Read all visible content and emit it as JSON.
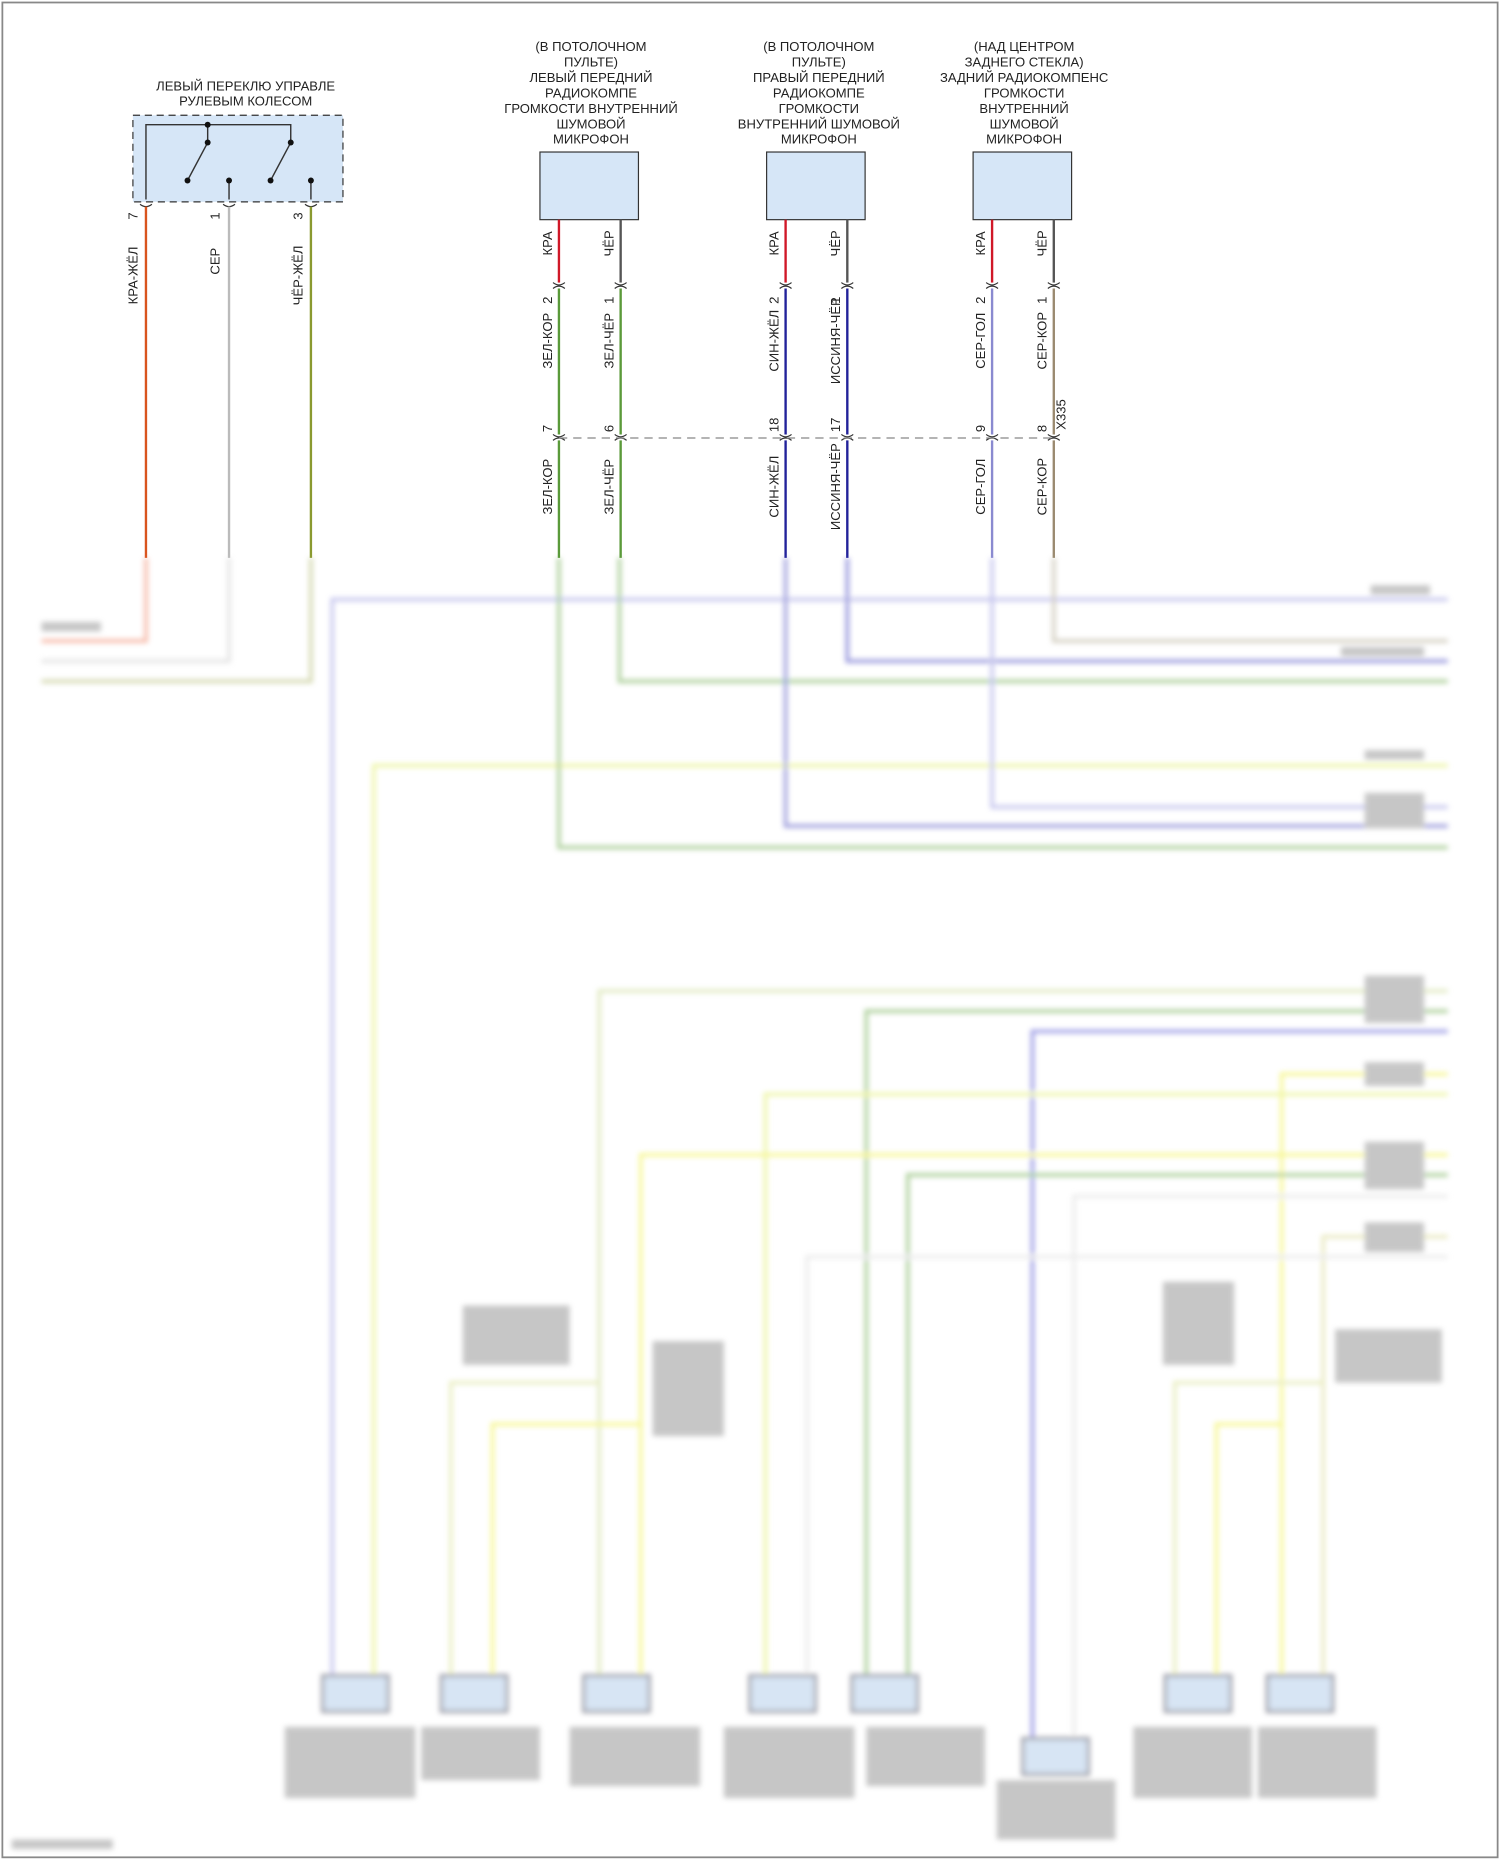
{
  "switch": {
    "title": [
      "ЛЕВЫЙ ПЕРЕКЛЮ УПРАВЛЕ",
      "РУЛЕВЫМ КОЛЕСОМ"
    ],
    "pins": [
      "7",
      "1",
      "3"
    ],
    "wires": [
      "КРА-ЖЁЛ",
      "СЕР",
      "ЧЁР-ЖЁЛ"
    ]
  },
  "mics": [
    {
      "title": [
        "(В ПОТОЛОЧНОМ",
        "ПУЛЬТЕ)",
        "ЛЕВЫЙ ПЕРЕДНИЙ",
        "РАДИОКОМПЕ",
        "ГРОМКОСТИ ВНУТРЕННИЙ",
        "ШУМОВОЙ",
        "МИКРОФОН"
      ],
      "top_wires": [
        "КРА",
        "ЧЁР"
      ],
      "pins_upper": [
        "2",
        "1"
      ],
      "mid_wires": [
        "ЗЕЛ-КОР",
        "ЗЕЛ-ЧЁР"
      ],
      "pins_lower": [
        "7",
        "6"
      ],
      "low_wires": [
        "ЗЕЛ-КОР",
        "ЗЕЛ-ЧЁР"
      ]
    },
    {
      "title": [
        "(В ПОТОЛОЧНОМ",
        "ПУЛЬТЕ)",
        "ПРАВЫЙ ПЕРЕДНИЙ",
        "РАДИОКОМПЕ",
        "ГРОМКОСТИ",
        "ВНУТРЕННИЙ ШУМОВОЙ",
        "МИКРОФОН"
      ],
      "top_wires": [
        "КРА",
        "ЧЁР"
      ],
      "pins_upper": [
        "2",
        "1"
      ],
      "mid_wires": [
        "СИН-ЖЁЛ",
        "ИССИНЯ-ЧЁР"
      ],
      "pins_lower": [
        "18",
        "17"
      ],
      "low_wires": [
        "СИН-ЖЁЛ",
        "ИССИНЯ-ЧЁР"
      ]
    },
    {
      "title": [
        "(НАД ЦЕНТРОМ",
        "ЗАДНЕГО СТЕКЛА)",
        "ЗАДНИЙ РАДИОКОМПЕНС",
        "ГРОМКОСТИ",
        "ВНУТРЕННИЙ",
        "ШУМОВОЙ",
        "МИКРОФОН"
      ],
      "top_wires": [
        "КРА",
        "ЧЁР"
      ],
      "pins_upper": [
        "2",
        "1"
      ],
      "mid_wires": [
        "СЕР-ГОЛ",
        "СЕР-КОР"
      ],
      "pins_lower": [
        "9",
        "8"
      ],
      "low_wires": [
        "СЕР-ГОЛ",
        "СЕР-КОР"
      ]
    }
  ],
  "connector_id": "X335",
  "colors": {
    "component_fill": "#d6e6f7",
    "red": "#d01828",
    "black": "#555555",
    "green": "#5a9a3a",
    "blue": "#22229a",
    "gray_blue": "#8a8ad0",
    "gray_brown": "#9a8a70",
    "red_yellow": "#d9541e",
    "gray": "#bbbbbb",
    "black_yellow": "#8a9a30"
  },
  "obscured_region": "blurred"
}
